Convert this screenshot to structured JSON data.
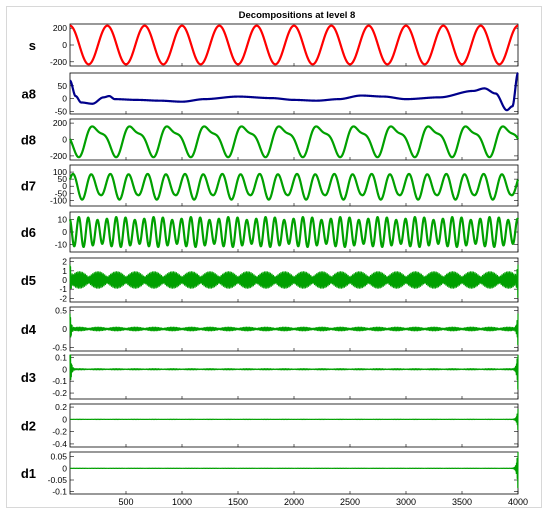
{
  "chart_data": {
    "type": "line",
    "title": "Decompositions at level 8",
    "xlim": [
      0,
      4000
    ],
    "x_ticks": [
      500,
      1000,
      1500,
      2000,
      2500,
      3000,
      3500,
      4000
    ],
    "grid": false,
    "panels": [
      {
        "name": "s",
        "color": "#ff0000",
        "ylim": [
          -250,
          250
        ],
        "yticks": [
          200,
          0,
          -200
        ],
        "signal": {
          "kind": "sine",
          "amplitude": 230,
          "cycles": 12,
          "phase": 0.25
        }
      },
      {
        "name": "a8",
        "color": "#00008b",
        "ylim": [
          -60,
          100
        ],
        "yticks": [
          50,
          0,
          -50
        ],
        "signal": {
          "kind": "curve",
          "points": [
            [
              0,
              70
            ],
            [
              50,
              10
            ],
            [
              100,
              -15
            ],
            [
              200,
              -20
            ],
            [
              300,
              5
            ],
            [
              350,
              10
            ],
            [
              400,
              -2
            ],
            [
              600,
              -5
            ],
            [
              800,
              -8
            ],
            [
              1000,
              -12
            ],
            [
              1200,
              -2
            ],
            [
              1500,
              8
            ],
            [
              1800,
              2
            ],
            [
              2000,
              -5
            ],
            [
              2200,
              -8
            ],
            [
              2400,
              -2
            ],
            [
              2600,
              12
            ],
            [
              2800,
              8
            ],
            [
              3000,
              -2
            ],
            [
              3300,
              5
            ],
            [
              3600,
              30
            ],
            [
              3700,
              40
            ],
            [
              3800,
              20
            ],
            [
              3900,
              -45
            ],
            [
              3950,
              -30
            ],
            [
              4000,
              100
            ]
          ]
        }
      },
      {
        "name": "d8",
        "color": "#00a000",
        "ylim": [
          -250,
          250
        ],
        "yticks": [
          200,
          0,
          -200
        ],
        "signal": {
          "kind": "sine",
          "amplitude": 200,
          "cycles": 12,
          "phase": 0.55,
          "harmonic": 0.35
        }
      },
      {
        "name": "d7",
        "color": "#00a000",
        "ylim": [
          -140,
          150
        ],
        "yticks": [
          100,
          50,
          0,
          -50,
          -100
        ],
        "signal": {
          "kind": "sine",
          "amplitude": 95,
          "cycles": 24,
          "phase": 0.1,
          "modulation": 0.35,
          "modCycles": 12
        }
      },
      {
        "name": "d6",
        "color": "#00a000",
        "ylim": [
          -16,
          16
        ],
        "yticks": [
          10,
          0,
          -10
        ],
        "signal": {
          "kind": "sine",
          "amplitude": 12,
          "cycles": 48,
          "phase": 0.3,
          "modulation": 0.25,
          "modCycles": 12
        }
      },
      {
        "name": "d5",
        "color": "#00a000",
        "ylim": [
          -2.4,
          2.4
        ],
        "yticks": [
          2,
          1,
          0,
          -1,
          -2
        ],
        "signal": {
          "kind": "beat",
          "amplitude": 0.9,
          "beatCycles": 24,
          "edgeSpike": 2.0
        }
      },
      {
        "name": "d4",
        "color": "#00a000",
        "ylim": [
          -0.6,
          0.6
        ],
        "yticks": [
          0.5,
          0,
          -0.5
        ],
        "signal": {
          "kind": "beat",
          "amplitude": 0.05,
          "beatCycles": 24,
          "edgeSpike": 0.5
        }
      },
      {
        "name": "d3",
        "color": "#00a000",
        "ylim": [
          -0.25,
          0.12
        ],
        "yticks": [
          0.1,
          0,
          -0.1,
          -0.2
        ],
        "signal": {
          "kind": "beat",
          "amplitude": 0.005,
          "beatCycles": 24,
          "edgeSpike": 0.2
        }
      },
      {
        "name": "d2",
        "color": "#00a000",
        "ylim": [
          -0.45,
          0.25
        ],
        "yticks": [
          0.2,
          0,
          -0.2,
          -0.4
        ],
        "signal": {
          "kind": "beat",
          "amplitude": 0.002,
          "beatCycles": 24,
          "edgeSpike": 0.2,
          "edgeOnlyRight": true
        }
      },
      {
        "name": "d1",
        "color": "#00a000",
        "ylim": [
          -0.11,
          0.07
        ],
        "yticks": [
          0.05,
          0,
          -0.05,
          -0.1
        ],
        "signal": {
          "kind": "beat",
          "amplitude": 0.0005,
          "beatCycles": 24,
          "edgeSpike": 0.1,
          "edgeOnlyRight": true
        }
      }
    ]
  }
}
